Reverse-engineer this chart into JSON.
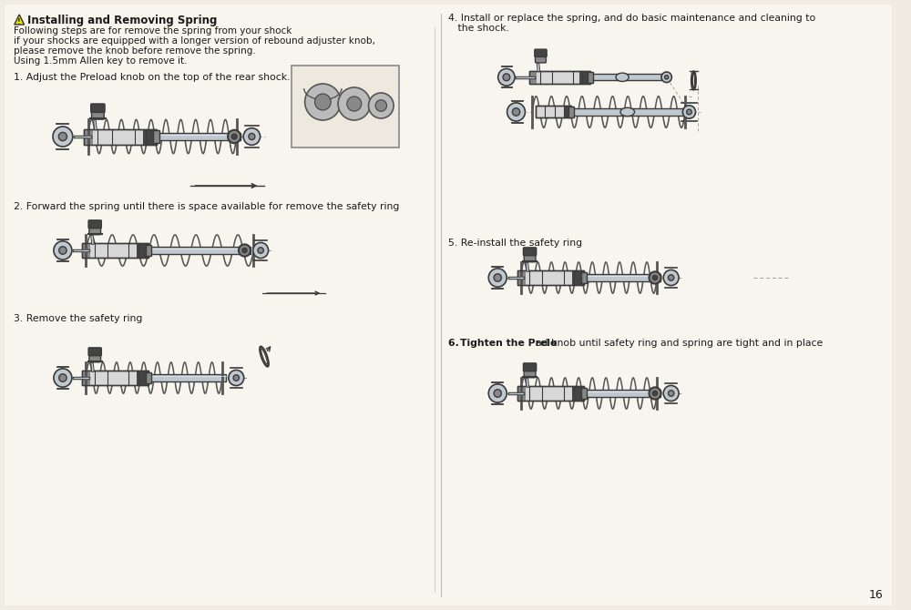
{
  "background_color": "#f0ece2",
  "page_number": "16",
  "warning_title": "Installing and Removing Spring",
  "warning_text_line1": "Following steps are for remove the spring from your shock",
  "warning_text_line2": "if your shocks are equipped with a longer version of rebound adjuster knob,",
  "warning_text_line3": "please remove the knob before remove the spring.",
  "warning_text_line4": "Using 1.5mm Allen key to remove it.",
  "step1_text": "1. Adjust the Preload knob on the top of the rear shock.",
  "step2_text": "2. Forward the spring until there is space available for remove the safety ring",
  "step3_text": "3. Remove the safety ring",
  "step4_text_line1": "4. Install or replace the spring, and do basic maintenance and cleaning to",
  "step4_text_line2": "   the shock.",
  "step5_text": "5. Re-install the safety ring",
  "step6_bold": "6. Tighten the Prelo",
  "step6_normal": "ad knob until safety ring and spring are tight and in place",
  "text_color": "#1a1a1a",
  "draw_color": "#3a3a3a",
  "spring_color": "#555555",
  "body_fill": "#d8d8d8",
  "dark_fill": "#888888",
  "darker_fill": "#444444",
  "chrome_fill": "#c0c8d0",
  "divider_color": "#bbbbbb"
}
